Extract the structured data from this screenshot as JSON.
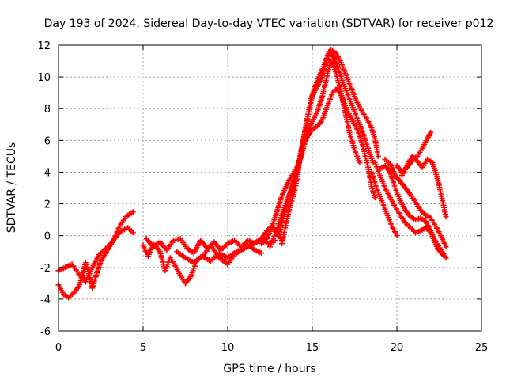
{
  "chart_data": {
    "type": "scatter",
    "title": "Day 193 of 2024, Sidereal Day-to-day VTEC variation (SDTVAR) for receiver p012",
    "xlabel": "GPS time / hours",
    "ylabel": "SDTVAR / TECUs",
    "xlim": [
      0,
      25
    ],
    "ylim": [
      -6,
      12
    ],
    "x_ticks": [
      "0",
      "5",
      "10",
      "15",
      "20",
      "25"
    ],
    "y_ticks": [
      "-6",
      "-4",
      "-2",
      "0",
      "2",
      "4",
      "6",
      "8",
      "10",
      "12"
    ],
    "grid": true,
    "marker": "plus",
    "color": "#ff0000",
    "series": [
      {
        "name": "track-1",
        "points": [
          [
            0.0,
            -2.2
          ],
          [
            0.4,
            -2.0
          ],
          [
            0.8,
            -1.8
          ],
          [
            1.2,
            -2.4
          ],
          [
            1.6,
            -2.9
          ],
          [
            2.0,
            -2.0
          ],
          [
            2.4,
            -1.2
          ],
          [
            2.8,
            -0.8
          ],
          [
            3.2,
            -0.4
          ],
          [
            3.6,
            0.6
          ],
          [
            4.0,
            1.2
          ],
          [
            4.4,
            1.5
          ]
        ]
      },
      {
        "name": "track-2",
        "points": [
          [
            0.0,
            -3.1
          ],
          [
            0.3,
            -3.7
          ],
          [
            0.6,
            -3.9
          ],
          [
            0.9,
            -3.6
          ],
          [
            1.2,
            -3.2
          ],
          [
            1.4,
            -2.6
          ],
          [
            1.6,
            -1.7
          ],
          [
            1.8,
            -2.4
          ],
          [
            2.0,
            -3.3
          ],
          [
            2.2,
            -2.6
          ],
          [
            2.5,
            -1.6
          ],
          [
            2.9,
            -0.9
          ],
          [
            3.3,
            -0.2
          ],
          [
            3.7,
            0.3
          ],
          [
            4.1,
            0.5
          ],
          [
            4.4,
            0.2
          ]
        ]
      },
      {
        "name": "track-3",
        "points": [
          [
            5.0,
            -0.6
          ],
          [
            5.3,
            -1.3
          ],
          [
            5.6,
            -0.5
          ],
          [
            6.0,
            -1.0
          ],
          [
            6.3,
            -2.2
          ],
          [
            6.6,
            -1.4
          ],
          [
            6.9,
            -1.9
          ],
          [
            7.2,
            -2.5
          ],
          [
            7.5,
            -3.0
          ],
          [
            7.8,
            -2.6
          ],
          [
            8.2,
            -1.5
          ],
          [
            8.6,
            -1.2
          ],
          [
            9.0,
            -0.6
          ],
          [
            9.5,
            -1.4
          ],
          [
            10.0,
            -1.8
          ],
          [
            10.4,
            -1.2
          ],
          [
            10.8,
            -0.9
          ],
          [
            11.2,
            -0.6
          ],
          [
            11.6,
            -0.9
          ],
          [
            12.0,
            -1.1
          ]
        ]
      },
      {
        "name": "track-4",
        "points": [
          [
            5.2,
            -0.2
          ],
          [
            5.6,
            -0.7
          ],
          [
            6.0,
            -0.4
          ],
          [
            6.4,
            -0.9
          ],
          [
            6.8,
            -0.3
          ],
          [
            7.2,
            -0.2
          ],
          [
            7.6,
            -0.8
          ],
          [
            8.0,
            -1.1
          ],
          [
            8.4,
            -0.3
          ],
          [
            8.8,
            -0.8
          ],
          [
            9.2,
            -0.4
          ],
          [
            9.6,
            -0.9
          ],
          [
            10.0,
            -0.5
          ],
          [
            10.4,
            -0.3
          ],
          [
            10.8,
            -0.7
          ],
          [
            11.2,
            -0.3
          ],
          [
            11.6,
            -0.5
          ],
          [
            12.0,
            -0.2
          ],
          [
            12.4,
            -0.5
          ],
          [
            12.8,
            -0.3
          ]
        ]
      },
      {
        "name": "track-5",
        "points": [
          [
            7.0,
            -1.0
          ],
          [
            7.5,
            -1.4
          ],
          [
            8.0,
            -1.7
          ],
          [
            8.5,
            -1.3
          ],
          [
            9.0,
            -1.6
          ],
          [
            9.5,
            -1.1
          ],
          [
            10.0,
            -1.4
          ],
          [
            10.5,
            -1.0
          ],
          [
            11.0,
            -0.8
          ],
          [
            11.5,
            -0.5
          ],
          [
            12.0,
            -0.2
          ],
          [
            12.3,
            0.3
          ],
          [
            12.6,
            0.6
          ],
          [
            12.9,
            0.2
          ],
          [
            13.2,
            -0.3
          ]
        ]
      },
      {
        "name": "track-6",
        "points": [
          [
            12.0,
            -0.5
          ],
          [
            12.3,
            -0.2
          ],
          [
            12.6,
            0.5
          ],
          [
            12.9,
            1.5
          ],
          [
            13.2,
            2.5
          ],
          [
            13.5,
            3.2
          ],
          [
            13.8,
            3.8
          ],
          [
            14.1,
            4.3
          ],
          [
            14.4,
            5.2
          ],
          [
            14.7,
            6.5
          ],
          [
            15.0,
            7.2
          ],
          [
            15.3,
            7.8
          ],
          [
            15.6,
            8.8
          ],
          [
            15.9,
            10.2
          ],
          [
            16.1,
            11.0
          ],
          [
            16.3,
            10.6
          ],
          [
            16.6,
            9.5
          ],
          [
            16.9,
            8.0
          ],
          [
            17.2,
            6.5
          ],
          [
            17.5,
            5.4
          ],
          [
            17.8,
            4.6
          ]
        ]
      },
      {
        "name": "track-7",
        "points": [
          [
            12.5,
            -0.7
          ],
          [
            12.8,
            0.1
          ],
          [
            13.1,
            1.0
          ],
          [
            13.4,
            1.9
          ],
          [
            13.7,
            2.7
          ],
          [
            14.0,
            3.6
          ],
          [
            14.2,
            4.5
          ],
          [
            14.4,
            5.4
          ],
          [
            14.6,
            6.0
          ],
          [
            14.8,
            6.4
          ],
          [
            15.0,
            6.7
          ],
          [
            15.3,
            6.9
          ],
          [
            15.6,
            7.3
          ],
          [
            15.9,
            8.2
          ],
          [
            16.2,
            9.0
          ],
          [
            16.5,
            9.3
          ],
          [
            16.8,
            8.6
          ],
          [
            17.1,
            7.8
          ],
          [
            17.4,
            7.2
          ],
          [
            17.7,
            6.6
          ],
          [
            18.0,
            5.6
          ],
          [
            18.3,
            4.3
          ],
          [
            18.5,
            3.1
          ],
          [
            18.7,
            2.4
          ]
        ]
      },
      {
        "name": "track-8",
        "points": [
          [
            13.0,
            0.0
          ],
          [
            13.3,
            1.2
          ],
          [
            13.6,
            2.4
          ],
          [
            13.9,
            3.4
          ],
          [
            14.2,
            4.6
          ],
          [
            14.5,
            6.2
          ],
          [
            14.8,
            7.8
          ],
          [
            15.0,
            8.8
          ],
          [
            15.3,
            9.4
          ],
          [
            15.6,
            10.1
          ],
          [
            15.9,
            11.2
          ],
          [
            16.1,
            11.7
          ],
          [
            16.4,
            11.5
          ],
          [
            16.7,
            10.9
          ],
          [
            17.0,
            10.1
          ],
          [
            17.3,
            9.3
          ],
          [
            17.6,
            8.5
          ],
          [
            17.9,
            7.9
          ],
          [
            18.2,
            7.4
          ],
          [
            18.5,
            6.8
          ],
          [
            18.7,
            6.1
          ],
          [
            18.9,
            5.0
          ]
        ]
      },
      {
        "name": "track-9",
        "points": [
          [
            13.2,
            -0.5
          ],
          [
            13.6,
            1.5
          ],
          [
            14.0,
            3.0
          ],
          [
            14.3,
            5.0
          ],
          [
            14.6,
            6.8
          ],
          [
            14.9,
            8.5
          ],
          [
            15.2,
            9.5
          ],
          [
            15.6,
            10.5
          ],
          [
            16.0,
            11.6
          ],
          [
            16.3,
            11.2
          ],
          [
            16.6,
            10.3
          ],
          [
            16.9,
            9.4
          ],
          [
            17.2,
            8.6
          ],
          [
            17.5,
            7.8
          ],
          [
            17.8,
            7.0
          ],
          [
            18.0,
            6.4
          ],
          [
            18.3,
            5.5
          ],
          [
            18.6,
            4.6
          ]
        ]
      },
      {
        "name": "track-10",
        "points": [
          [
            18.5,
            4.0
          ],
          [
            18.8,
            3.0
          ],
          [
            19.1,
            2.2
          ],
          [
            19.4,
            1.4
          ],
          [
            19.7,
            0.6
          ],
          [
            20.0,
            0.0
          ]
        ]
      },
      {
        "name": "track-11",
        "points": [
          [
            18.7,
            4.6
          ],
          [
            19.0,
            3.8
          ],
          [
            19.3,
            3.0
          ],
          [
            19.6,
            2.4
          ],
          [
            19.9,
            1.8
          ],
          [
            20.2,
            1.3
          ],
          [
            20.5,
            0.8
          ],
          [
            20.8,
            0.5
          ],
          [
            21.1,
            0.2
          ],
          [
            21.4,
            0.3
          ],
          [
            21.7,
            0.5
          ],
          [
            22.0,
            0.2
          ],
          [
            22.4,
            -0.8
          ],
          [
            22.8,
            -1.3
          ]
        ]
      },
      {
        "name": "track-12",
        "points": [
          [
            19.0,
            4.2
          ],
          [
            19.3,
            4.4
          ],
          [
            19.6,
            4.0
          ],
          [
            19.9,
            3.0
          ],
          [
            20.2,
            2.2
          ],
          [
            20.5,
            1.6
          ],
          [
            20.8,
            1.2
          ],
          [
            21.1,
            1.0
          ],
          [
            21.4,
            1.1
          ],
          [
            21.7,
            0.9
          ],
          [
            22.0,
            0.3
          ],
          [
            22.3,
            -0.4
          ],
          [
            22.6,
            -0.9
          ],
          [
            22.9,
            -1.4
          ]
        ]
      },
      {
        "name": "track-13",
        "points": [
          [
            19.3,
            4.8
          ],
          [
            19.6,
            4.5
          ],
          [
            19.9,
            3.8
          ],
          [
            20.2,
            3.4
          ],
          [
            20.5,
            3.0
          ],
          [
            20.8,
            2.6
          ],
          [
            21.1,
            2.1
          ],
          [
            21.4,
            1.6
          ],
          [
            21.7,
            1.3
          ],
          [
            22.0,
            1.1
          ],
          [
            22.3,
            0.6
          ],
          [
            22.6,
            0.0
          ],
          [
            22.9,
            -0.7
          ]
        ]
      },
      {
        "name": "track-14",
        "points": [
          [
            20.0,
            4.4
          ],
          [
            20.3,
            4.0
          ],
          [
            20.6,
            4.3
          ],
          [
            20.9,
            4.7
          ],
          [
            21.2,
            5.0
          ],
          [
            21.5,
            5.5
          ],
          [
            21.8,
            6.1
          ],
          [
            22.0,
            6.5
          ]
        ]
      },
      {
        "name": "track-15",
        "points": [
          [
            20.3,
            3.8
          ],
          [
            20.6,
            4.4
          ],
          [
            20.9,
            5.0
          ],
          [
            21.2,
            4.7
          ],
          [
            21.5,
            4.3
          ],
          [
            21.8,
            4.8
          ],
          [
            22.1,
            4.6
          ],
          [
            22.4,
            3.6
          ],
          [
            22.7,
            2.2
          ],
          [
            22.9,
            1.2
          ]
        ]
      }
    ]
  }
}
